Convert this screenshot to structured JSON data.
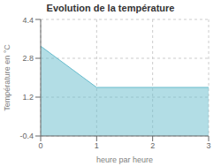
{
  "chart_data": {
    "type": "area",
    "title": "Evolution de la température",
    "xlabel": "heure par heure",
    "ylabel": "Température en °C",
    "x": [
      0,
      1,
      3
    ],
    "values": [
      3.3,
      1.6,
      1.6
    ],
    "color": "#66bbcc",
    "xlim": [
      0,
      3
    ],
    "xticks": [
      0,
      1,
      2,
      3
    ],
    "ylim": [
      -0.4,
      4.4
    ],
    "yticks": [
      -0.4,
      1.2,
      2.8,
      4.4
    ],
    "grid": true
  }
}
